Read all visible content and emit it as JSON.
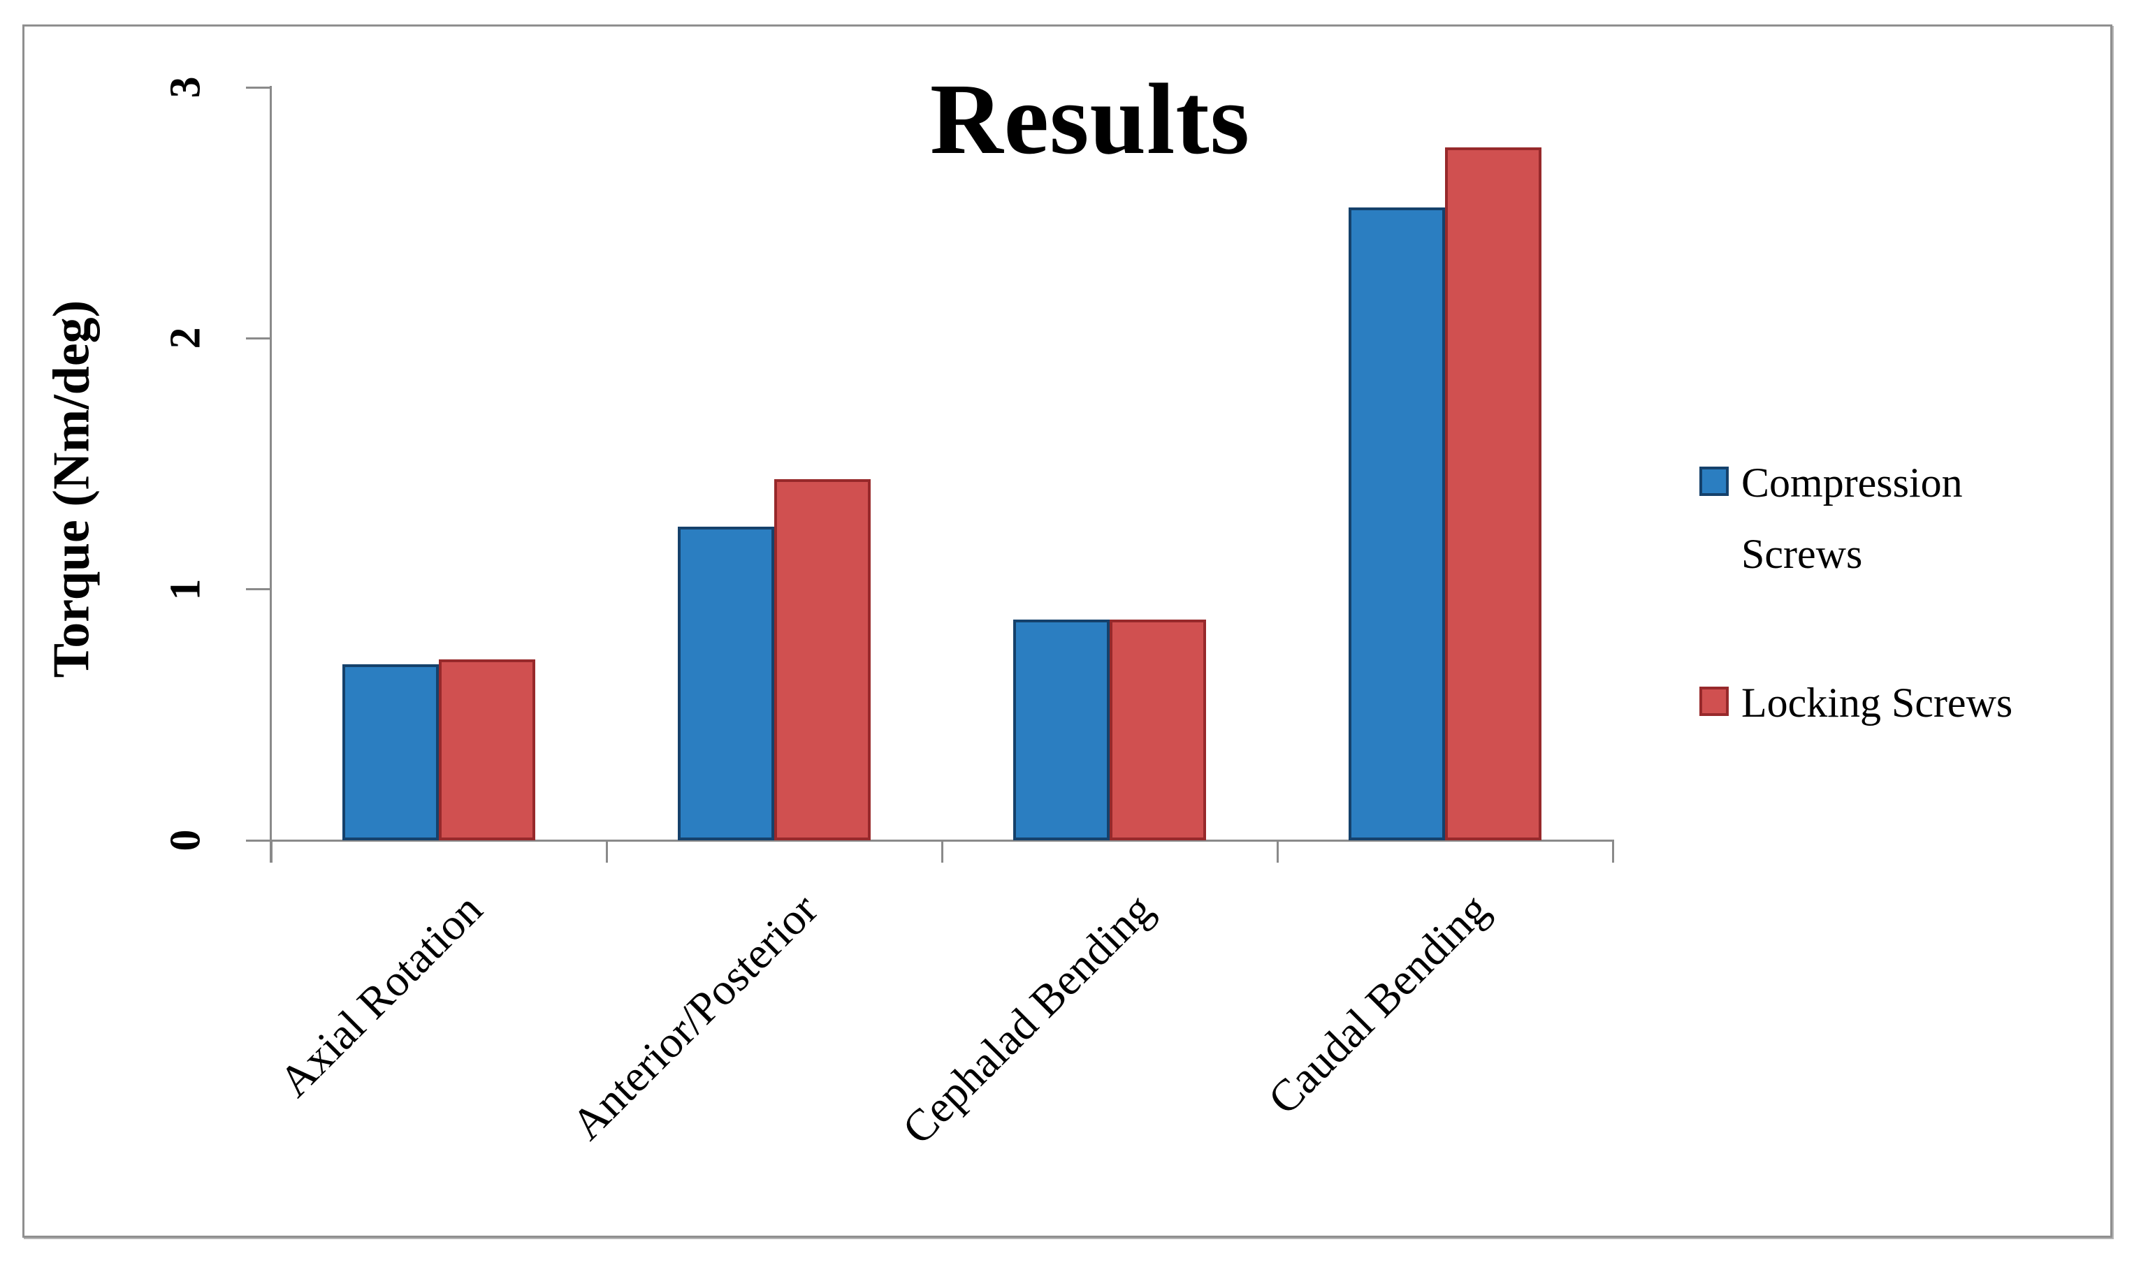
{
  "title": "Results",
  "y_axis_label": "Torque (Nm/deg)",
  "legend": [
    {
      "label": "Compression Screws"
    },
    {
      "label": "Locking Screws"
    }
  ],
  "colors": {
    "axis_gray": "#8A8A8A",
    "frame_gray": "#8F8F8F",
    "compression_blue": "#2B7EC1",
    "compression_blue_border": "#15416B",
    "locking_red": "#D05050",
    "locking_red_border": "#97292B",
    "text_black": "#000000"
  },
  "chart_data": {
    "type": "bar",
    "title": "Results",
    "xlabel": "",
    "ylabel": "Torque (Nm/deg)",
    "categories": [
      "Axial Rotation",
      "Anterior/Posterior",
      "Cephalad Bending",
      "Caudal Bending"
    ],
    "series": [
      {
        "name": "Compression Screws",
        "color": "#2B7EC1",
        "border_color": "#15416B",
        "values": [
          0.7,
          1.25,
          0.88,
          2.52
        ]
      },
      {
        "name": "Locking Screws",
        "color": "#D05050",
        "border_color": "#97292B",
        "values": [
          0.72,
          1.44,
          0.88,
          2.76
        ]
      }
    ],
    "ylim": [
      0,
      3
    ],
    "yticks": [
      0,
      1,
      2,
      3
    ],
    "grid": false,
    "legend_position": "right",
    "bar_orientation": "vertical"
  }
}
